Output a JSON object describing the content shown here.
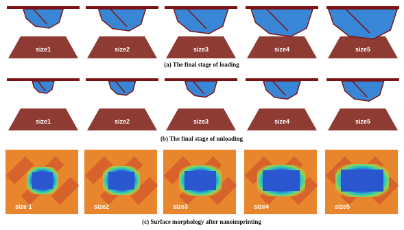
{
  "rows": [
    {
      "caption": "(a) The final stage of loading",
      "panels": [
        "size1",
        "size2",
        "size3",
        "size4",
        "size5"
      ]
    },
    {
      "caption": "(b) The final stage of unloading",
      "panels": [
        "size1",
        "size2",
        "size3",
        "size4",
        "size5"
      ]
    },
    {
      "caption": "(c) Surface morphology after nanoimprinting",
      "panels": [
        "size 1",
        "size2",
        "size3",
        "size4",
        "size5"
      ]
    }
  ]
}
